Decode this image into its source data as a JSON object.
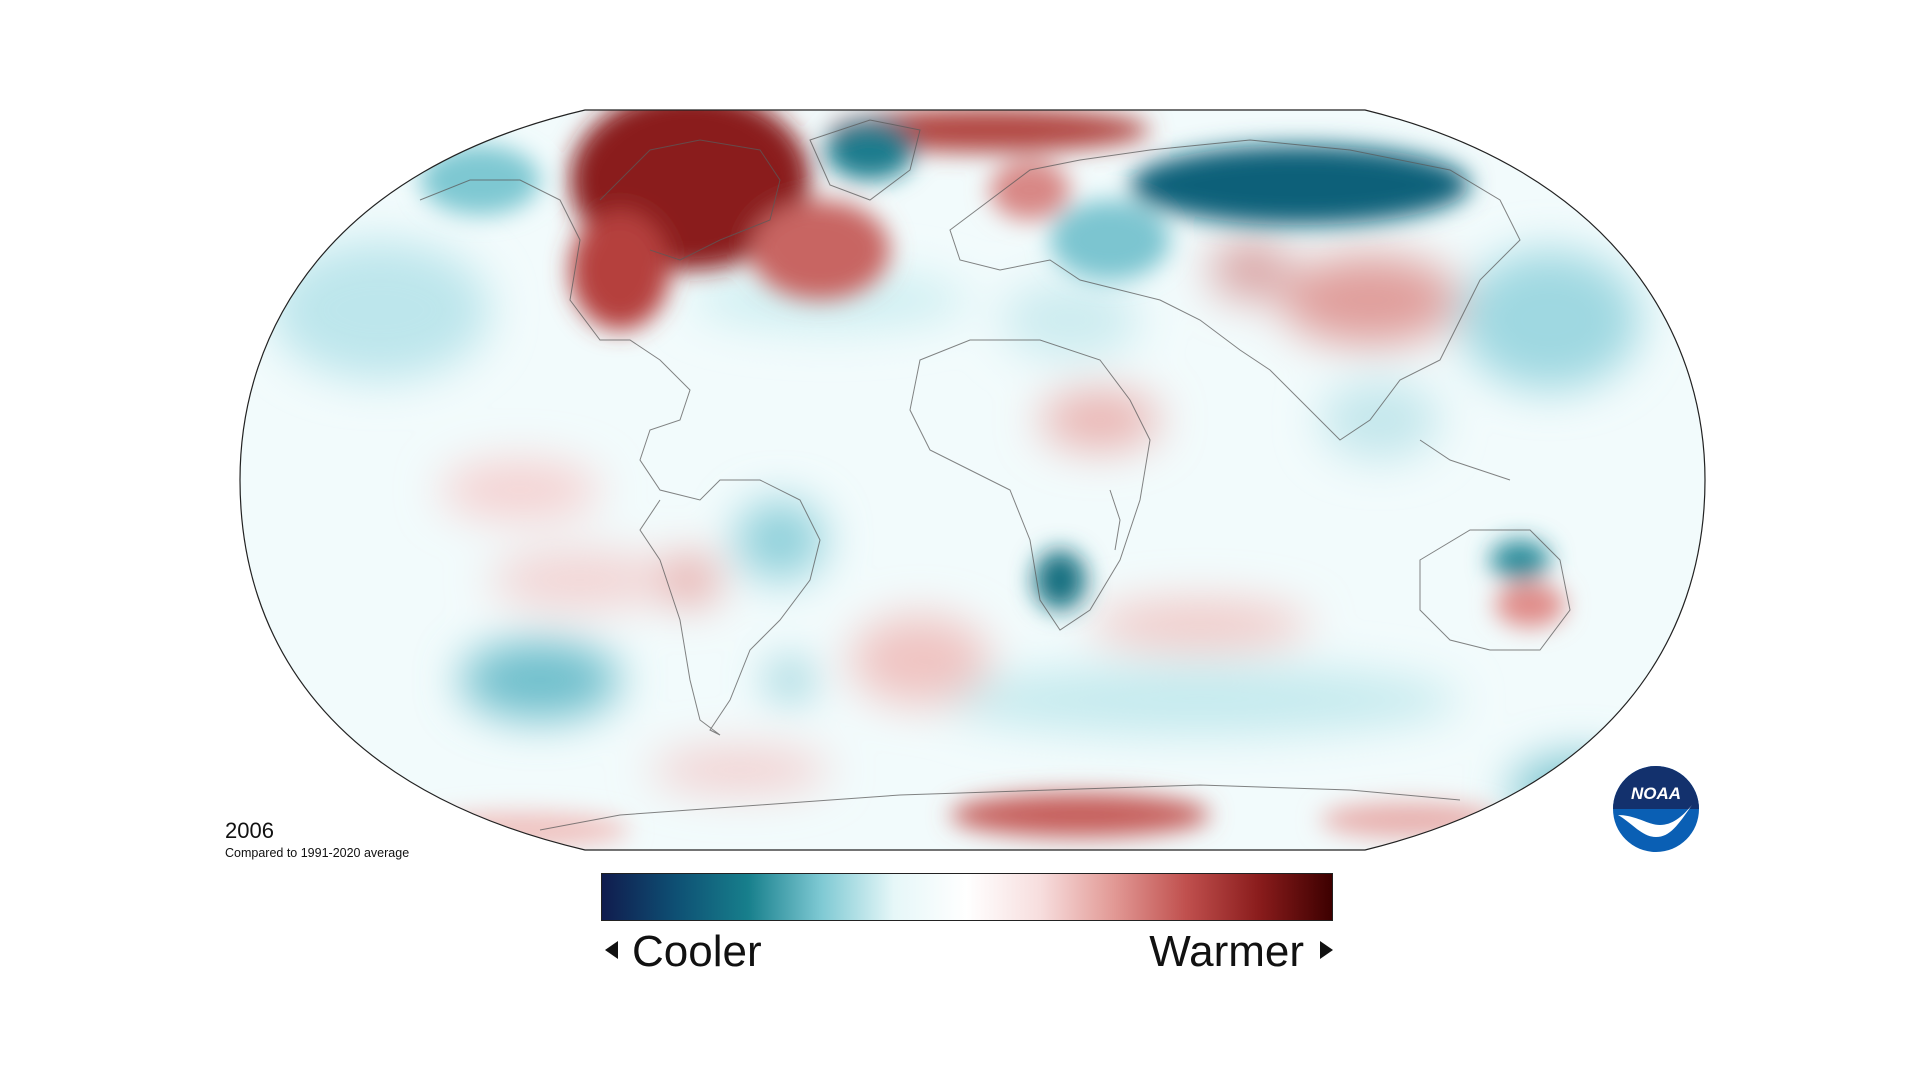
{
  "figure": {
    "year": "2006",
    "baseline_note": "Compared to 1991-2020 average",
    "projection": "Robinson",
    "map_type": "temperature anomaly"
  },
  "legend": {
    "cooler_label": "Cooler",
    "warmer_label": "Warmer",
    "colors": [
      "#101c4e",
      "#0e4f73",
      "#177f8c",
      "#7ec9d3",
      "#e6f7f8",
      "#ffffff",
      "#f7dede",
      "#e29a96",
      "#c0504e",
      "#8a1c1c",
      "#3d0000"
    ]
  },
  "logo": {
    "text": "NOAA",
    "primary_color": "#0a5fb4",
    "navy_color": "#13316d"
  },
  "anomaly_regions": [
    {
      "name": "northeast-canada-greenland-west",
      "sign": "warm",
      "intensity": 1.0
    },
    {
      "name": "north-atlantic",
      "sign": "warm",
      "intensity": 0.6
    },
    {
      "name": "arctic-siberia",
      "sign": "cool",
      "intensity": 0.9
    },
    {
      "name": "central-asia",
      "sign": "warm",
      "intensity": 0.5
    },
    {
      "name": "alaska",
      "sign": "cool",
      "intensity": 0.5
    },
    {
      "name": "northeast-pacific",
      "sign": "cool",
      "intensity": 0.35
    },
    {
      "name": "southern-africa",
      "sign": "cool",
      "intensity": 0.8
    },
    {
      "name": "australia-south",
      "sign": "warm",
      "intensity": 0.5
    },
    {
      "name": "australia-north",
      "sign": "cool",
      "intensity": 0.6
    },
    {
      "name": "south-pacific",
      "sign": "cool",
      "intensity": 0.5
    },
    {
      "name": "antarctica-east",
      "sign": "warm",
      "intensity": 0.7
    },
    {
      "name": "scandinavia",
      "sign": "warm",
      "intensity": 0.5
    },
    {
      "name": "brazil",
      "sign": "cool",
      "intensity": 0.45
    },
    {
      "name": "south-atlantic",
      "sign": "warm",
      "intensity": 0.35
    }
  ]
}
